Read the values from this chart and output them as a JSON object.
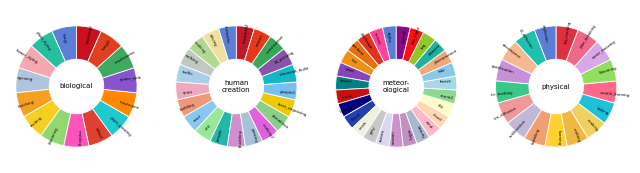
{
  "biological": {
    "title": "biological",
    "segments": [
      {
        "label": "fungi",
        "color": "#5B7FD6"
      },
      {
        "label": "plant_dying",
        "color": "#26C0A0"
      },
      {
        "label": "flower_dying",
        "color": "#F5A8B0"
      },
      {
        "label": "ripening",
        "color": "#B0C4E0"
      },
      {
        "label": "hatching",
        "color": "#F5A020"
      },
      {
        "label": "fruiting",
        "color": "#F5D020"
      },
      {
        "label": "blooming",
        "color": "#90D870"
      },
      {
        "label": "molding",
        "color": "#FF55BB"
      },
      {
        "label": "wilted",
        "color": "#E04030"
      },
      {
        "label": "plant_growing",
        "color": "#20C8D0"
      },
      {
        "label": "mushroom",
        "color": "#FF8800"
      },
      {
        "label": "spider_web",
        "color": "#8855CC"
      },
      {
        "label": "mushrooms",
        "color": "#40A860"
      },
      {
        "label": "fungi2",
        "color": "#E04020"
      },
      {
        "label": "hatching2",
        "color": "#CC1020"
      }
    ]
  },
  "human": {
    "title": "human\ncreation",
    "segments": [
      {
        "label": "fireworks",
        "color": "#5B7FD6"
      },
      {
        "label": "driving",
        "color": "#F0E0A0"
      },
      {
        "label": "cooking",
        "color": "#B0D890"
      },
      {
        "label": "walking",
        "color": "#C0C8C0"
      },
      {
        "label": "traffic",
        "color": "#A8D0E8"
      },
      {
        "label": "sport",
        "color": "#F0A8C0"
      },
      {
        "label": "building",
        "color": "#F09878"
      },
      {
        "label": "road",
        "color": "#88C8F0"
      },
      {
        "label": "city",
        "color": "#98E898"
      },
      {
        "label": "people",
        "color": "#20B8A8"
      },
      {
        "label": "shopping",
        "color": "#D090D0"
      },
      {
        "label": "parking",
        "color": "#A8C0D8"
      },
      {
        "label": "cooking2",
        "color": "#E060E0"
      },
      {
        "label": "demolition",
        "color": "#88D088"
      },
      {
        "label": "laser_engraving",
        "color": "#F0C800"
      },
      {
        "label": "people2",
        "color": "#78C0F0"
      },
      {
        "label": "minecraft_build",
        "color": "#10B8C8"
      },
      {
        "label": "3d_printing",
        "color": "#8855AA"
      },
      {
        "label": "construction",
        "color": "#38A858"
      },
      {
        "label": "season",
        "color": "#E83818"
      },
      {
        "label": "fireworks2",
        "color": "#C01828"
      }
    ]
  },
  "meteorological": {
    "title": "meteor-\nological",
    "segments": [
      {
        "label": "alpha",
        "color": "#5B7FD6"
      },
      {
        "label": "sunset",
        "color": "#FF4499"
      },
      {
        "label": "discharge",
        "color": "#E83020"
      },
      {
        "label": "rainbow",
        "color": "#E87010"
      },
      {
        "label": "fire",
        "color": "#F09010"
      },
      {
        "label": "pixel",
        "color": "#8844BB"
      },
      {
        "label": "desert",
        "color": "#008080"
      },
      {
        "label": "storm",
        "color": "#CC1010"
      },
      {
        "label": "lightning",
        "color": "#000080"
      },
      {
        "label": "flood",
        "color": "#2040B0"
      },
      {
        "label": "snow",
        "color": "#F0F0E0"
      },
      {
        "label": "grey",
        "color": "#C8C8C8"
      },
      {
        "label": "aurora",
        "color": "#D8D8F0"
      },
      {
        "label": "season",
        "color": "#CC90CC"
      },
      {
        "label": "valley",
        "color": "#C090C0"
      },
      {
        "label": "beauty",
        "color": "#A8B8D0"
      },
      {
        "label": "wind",
        "color": "#FFB8C8"
      },
      {
        "label": "cloud",
        "color": "#FFD8B0"
      },
      {
        "label": "sky",
        "color": "#FFFCC8"
      },
      {
        "label": "storm2",
        "color": "#90D890"
      },
      {
        "label": "freeze",
        "color": "#A8D8E8"
      },
      {
        "label": "tide",
        "color": "#88C8E8"
      },
      {
        "label": "phenomenon",
        "color": "#F0A878"
      },
      {
        "label": "disaster",
        "color": "#20B0A0"
      },
      {
        "label": "fog",
        "color": "#90C828"
      },
      {
        "label": "day_night",
        "color": "#FF1010"
      },
      {
        "label": "alpha2",
        "color": "#880888"
      }
    ]
  },
  "physical": {
    "title": "physical",
    "segments": [
      {
        "label": "explosion",
        "color": "#5B7FD6"
      },
      {
        "label": "ld_diffusion",
        "color": "#20C0B0"
      },
      {
        "label": "decompose",
        "color": "#F5B890"
      },
      {
        "label": "gratification",
        "color": "#C890D8"
      },
      {
        "label": "ice_melting",
        "color": "#38C888"
      },
      {
        "label": "ion_diffusion",
        "color": "#F09898"
      },
      {
        "label": "sublimation",
        "color": "#C0B8D8"
      },
      {
        "label": "bubbling",
        "color": "#F0A070"
      },
      {
        "label": "burning",
        "color": "#FFD030"
      },
      {
        "label": "melting",
        "color": "#F0B840"
      },
      {
        "label": "cooking",
        "color": "#F0D060"
      },
      {
        "label": "baking",
        "color": "#20C0D8"
      },
      {
        "label": "candle_burning",
        "color": "#FF6888"
      },
      {
        "label": "blooming",
        "color": "#90E060"
      },
      {
        "label": "water_freezing",
        "color": "#D8A8E8"
      },
      {
        "label": "plan_breaking",
        "color": "#F06888"
      },
      {
        "label": "toy_melting",
        "color": "#E03040"
      }
    ]
  }
}
